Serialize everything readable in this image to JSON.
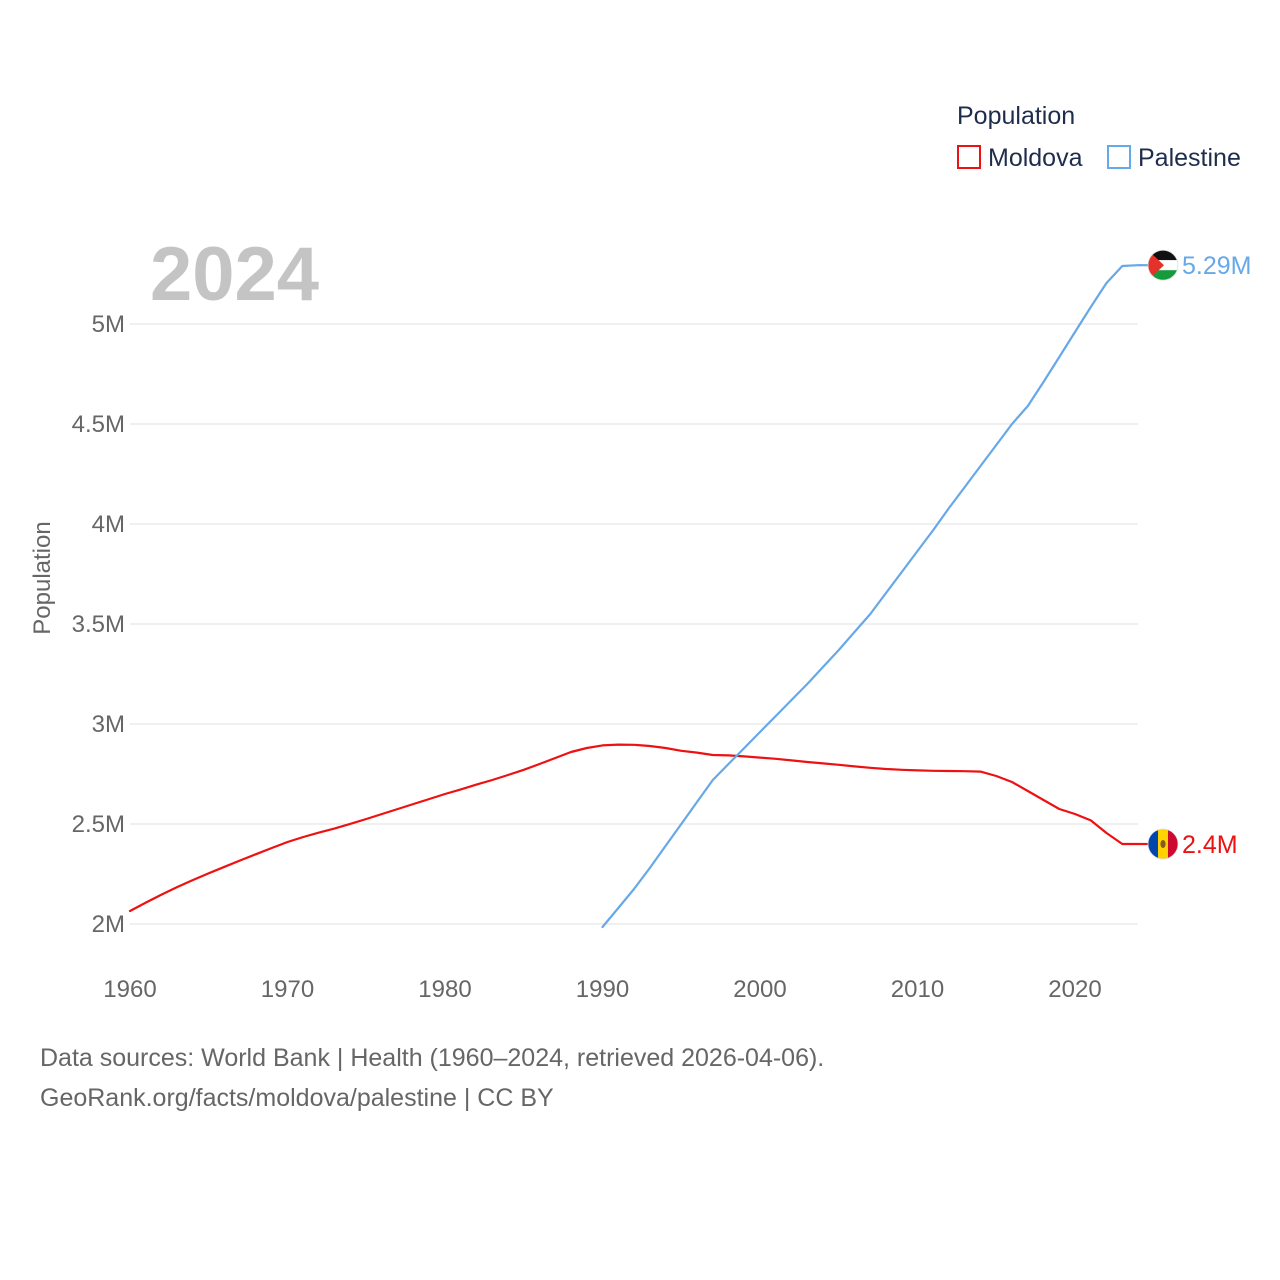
{
  "colors": {
    "moldova": "#ee1111",
    "palestine": "#66a8e8",
    "grid": "#e6e6e6",
    "year_label": "#c4c4c4",
    "tick_text": "#666666",
    "legend_text": "#1f2d4d"
  },
  "year_label": "2024",
  "footer": {
    "source": "Data sources: World Bank | Health (1960–2024, retrieved 2026-04-06).",
    "credit": "GeoRank.org/facts/moldova/palestine | CC BY"
  },
  "chart_data": {
    "type": "line",
    "title": "",
    "xlabel": "",
    "ylabel": "Population",
    "legend_title": "Population",
    "legend_position": "top-right",
    "xlim": [
      1960,
      2024
    ],
    "ylim": [
      1900000,
      5420000
    ],
    "x_ticks": [
      1960,
      1970,
      1980,
      1990,
      2000,
      2010,
      2020
    ],
    "x_tick_labels": [
      "1960",
      "1970",
      "1980",
      "1990",
      "2000",
      "2010",
      "2020"
    ],
    "y_ticks": [
      2000000,
      2500000,
      3000000,
      3500000,
      4000000,
      4500000,
      5000000
    ],
    "y_tick_labels": [
      "2M",
      "2.5M",
      "3M",
      "3.5M",
      "4M",
      "4.5M",
      "5M"
    ],
    "grid": true,
    "series": [
      {
        "name": "Moldova",
        "color": "#ee1111",
        "end_label": "2.4M",
        "flag": "moldova-flag-icon",
        "x": [
          1960,
          1961,
          1962,
          1963,
          1964,
          1965,
          1966,
          1967,
          1968,
          1969,
          1970,
          1971,
          1972,
          1973,
          1974,
          1975,
          1976,
          1977,
          1978,
          1979,
          1980,
          1981,
          1982,
          1983,
          1984,
          1985,
          1986,
          1987,
          1988,
          1989,
          1990,
          1991,
          1992,
          1993,
          1994,
          1995,
          1996,
          1997,
          1998,
          1999,
          2000,
          2001,
          2002,
          2003,
          2004,
          2005,
          2006,
          2007,
          2008,
          2009,
          2010,
          2011,
          2012,
          2013,
          2014,
          2015,
          2016,
          2017,
          2018,
          2019,
          2020,
          2021,
          2022,
          2023,
          2024
        ],
        "values": [
          2065000,
          2107000,
          2147000,
          2185000,
          2220000,
          2254000,
          2286000,
          2318000,
          2349000,
          2380000,
          2410000,
          2435000,
          2457000,
          2478000,
          2501000,
          2525000,
          2550000,
          2575000,
          2600000,
          2625000,
          2650000,
          2673000,
          2697000,
          2720000,
          2745000,
          2771000,
          2800000,
          2830000,
          2860000,
          2880000,
          2893000,
          2897000,
          2896000,
          2890000,
          2880000,
          2866000,
          2857000,
          2845000,
          2843000,
          2838000,
          2832000,
          2826000,
          2818000,
          2810000,
          2803000,
          2796000,
          2788000,
          2781000,
          2775000,
          2771000,
          2768000,
          2766000,
          2765000,
          2764000,
          2762000,
          2740000,
          2710000,
          2665000,
          2620000,
          2575000,
          2550000,
          2518000,
          2455000,
          2400000,
          2400000
        ]
      },
      {
        "name": "Palestine",
        "color": "#66a8e8",
        "end_label": "5.29M",
        "flag": "palestine-flag-icon",
        "x": [
          1990,
          1991,
          1992,
          1993,
          1994,
          1995,
          1996,
          1997,
          1998,
          1999,
          2000,
          2001,
          2002,
          2003,
          2004,
          2005,
          2006,
          2007,
          2008,
          2009,
          2010,
          2011,
          2012,
          2013,
          2014,
          2015,
          2016,
          2017,
          2018,
          2019,
          2020,
          2021,
          2022,
          2023,
          2024
        ],
        "values": [
          1985000,
          2080000,
          2175000,
          2280000,
          2390000,
          2500000,
          2610000,
          2720000,
          2800000,
          2880000,
          2960000,
          3040000,
          3120000,
          3200000,
          3285000,
          3370000,
          3460000,
          3550000,
          3655000,
          3760000,
          3865000,
          3970000,
          4080000,
          4185000,
          4290000,
          4395000,
          4500000,
          4590000,
          4710000,
          4835000,
          4960000,
          5085000,
          5205000,
          5290000,
          5294000
        ]
      }
    ]
  }
}
